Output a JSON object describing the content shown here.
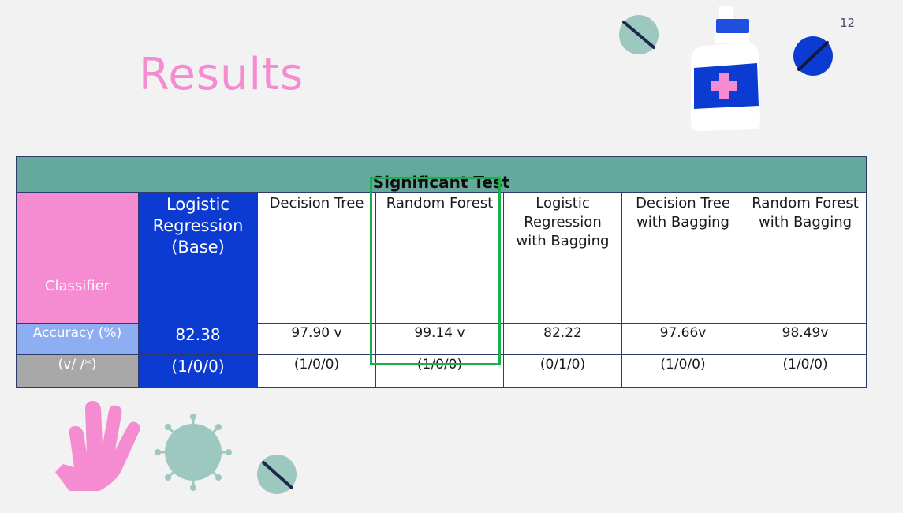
{
  "slide": {
    "title": "Results",
    "page_number": "12"
  },
  "table": {
    "title": "Significant Test",
    "header_label": "Classifier",
    "columns": [
      "Logistic Regression (Base)",
      "Decision Tree",
      "Random Forest",
      "Logistic Regression with Bagging",
      "Decision Tree with Bagging",
      "Random Forest with Bagging"
    ],
    "accuracy_label": "Accuracy (%)",
    "accuracy_values": [
      "82.38",
      "97.90 v",
      "99.14 v",
      "82.22",
      "97.66v",
      "98.49v"
    ],
    "wtl_label": "(v/ /*)",
    "wtl_values": [
      "(1/0/0)",
      "(1/0/0)",
      "(1/0/0)",
      "(0/1/0)",
      "(1/0/0)",
      "(1/0/0)"
    ]
  },
  "colors": {
    "title_pink": "#f58bd0",
    "header_teal": "#64a99c",
    "base_blue": "#0b3bd1",
    "accuracy_label_blue": "#8eaef3",
    "wtl_label_gray": "#a8a8a8",
    "highlight_green": "#19b04a",
    "decor_teal": "#9cc8bf"
  },
  "decorations": [
    "pill-icon",
    "medicine-bottle-icon",
    "glove-icon",
    "virus-icon"
  ]
}
